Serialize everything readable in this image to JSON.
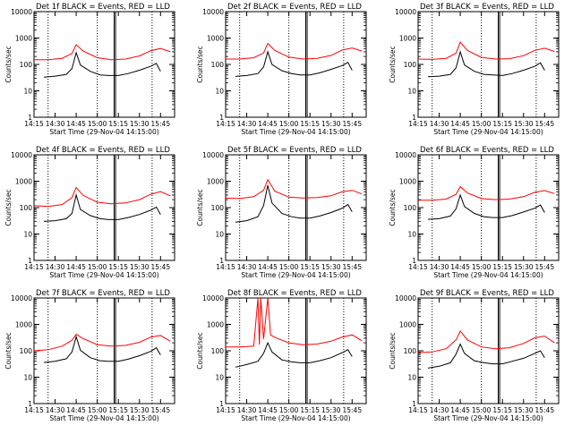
{
  "chart_data": {
    "type": "line",
    "y_scale": "log",
    "ylim": [
      1,
      10000
    ],
    "y_ticks": [
      1,
      10,
      100,
      1000,
      10000
    ],
    "y_tick_labels": [
      "1",
      "10",
      "100",
      "1000",
      "10000"
    ],
    "x_ticks": [
      "14:15",
      "14:30",
      "14:45",
      "15:00",
      "15:15",
      "15:30",
      "15:45"
    ],
    "x_tick_labels": [
      "14:15",
      "14:30",
      "14:45",
      "15:00",
      "15:15",
      "15:30",
      "15:45"
    ],
    "xlabel": "Start Time (29-Nov-04 14:15:00)",
    "ylabel": "Counts/sec",
    "series_colors": {
      "events": "#000000",
      "lld": "#ff0000"
    },
    "panels": [
      {
        "title": "Det 1f BLACK = Events, RED = LLD",
        "events": {
          "x": [
            "14:22",
            "14:30",
            "14:38",
            "14:42",
            "14:45",
            "14:48",
            "14:55",
            "15:02",
            "15:08",
            "15:15",
            "15:22",
            "15:30",
            "15:38",
            "15:42",
            "15:45"
          ],
          "y": [
            33,
            36,
            42,
            70,
            280,
            95,
            55,
            40,
            38,
            38,
            45,
            60,
            85,
            110,
            55
          ]
        },
        "lld": {
          "x": [
            "14:15",
            "14:25",
            "14:35",
            "14:42",
            "14:45",
            "14:50",
            "15:00",
            "15:10",
            "15:20",
            "15:30",
            "15:38",
            "15:45",
            "15:52"
          ],
          "y": [
            150,
            150,
            170,
            260,
            560,
            320,
            180,
            150,
            160,
            210,
            330,
            400,
            300
          ]
        }
      },
      {
        "title": "Det 2f BLACK = Events, RED = LLD",
        "events": {
          "x": [
            "14:22",
            "14:30",
            "14:38",
            "14:42",
            "14:45",
            "14:48",
            "14:55",
            "15:02",
            "15:08",
            "15:15",
            "15:22",
            "15:30",
            "15:38",
            "15:42",
            "15:45"
          ],
          "y": [
            35,
            38,
            45,
            80,
            300,
            100,
            58,
            45,
            40,
            40,
            48,
            65,
            90,
            120,
            60
          ]
        },
        "lld": {
          "x": [
            "14:15",
            "14:25",
            "14:35",
            "14:42",
            "14:45",
            "14:50",
            "15:00",
            "15:10",
            "15:20",
            "15:30",
            "15:38",
            "15:45",
            "15:52"
          ],
          "y": [
            160,
            160,
            180,
            270,
            620,
            340,
            190,
            160,
            170,
            220,
            350,
            420,
            320
          ]
        }
      },
      {
        "title": "Det 3f BLACK = Events, RED = LLD",
        "events": {
          "x": [
            "14:22",
            "14:30",
            "14:38",
            "14:42",
            "14:45",
            "14:48",
            "14:55",
            "15:02",
            "15:08",
            "15:15",
            "15:22",
            "15:30",
            "15:38",
            "15:42",
            "15:45"
          ],
          "y": [
            34,
            36,
            42,
            75,
            300,
            95,
            55,
            42,
            40,
            38,
            45,
            60,
            85,
            115,
            60
          ]
        },
        "lld": {
          "x": [
            "14:15",
            "14:25",
            "14:35",
            "14:42",
            "14:45",
            "14:50",
            "15:00",
            "15:10",
            "15:20",
            "15:30",
            "15:38",
            "15:45",
            "15:52"
          ],
          "y": [
            160,
            155,
            170,
            270,
            700,
            340,
            185,
            160,
            165,
            215,
            340,
            410,
            310
          ]
        }
      },
      {
        "title": "Det 4f BLACK = Events, RED = LLD",
        "events": {
          "x": [
            "14:22",
            "14:30",
            "14:38",
            "14:42",
            "14:45",
            "14:48",
            "14:55",
            "15:02",
            "15:08",
            "15:15",
            "15:22",
            "15:30",
            "15:38",
            "15:42",
            "15:45"
          ],
          "y": [
            30,
            32,
            38,
            60,
            300,
            85,
            50,
            38,
            35,
            35,
            42,
            55,
            80,
            105,
            55
          ]
        },
        "lld": {
          "x": [
            "14:15",
            "14:25",
            "14:35",
            "14:42",
            "14:45",
            "14:50",
            "15:00",
            "15:10",
            "15:20",
            "15:30",
            "15:38",
            "15:45",
            "15:52"
          ],
          "y": [
            120,
            110,
            130,
            240,
            580,
            290,
            160,
            140,
            150,
            200,
            320,
            400,
            280
          ]
        }
      },
      {
        "title": "Det 5f BLACK = Events, RED = LLD",
        "events": {
          "x": [
            "14:22",
            "14:30",
            "14:38",
            "14:42",
            "14:45",
            "14:48",
            "14:55",
            "15:02",
            "15:08",
            "15:15",
            "15:22",
            "15:30",
            "15:38",
            "15:42",
            "15:45"
          ],
          "y": [
            28,
            32,
            45,
            120,
            700,
            150,
            60,
            45,
            40,
            40,
            48,
            65,
            95,
            130,
            70
          ]
        },
        "lld": {
          "x": [
            "14:15",
            "14:25",
            "14:35",
            "14:42",
            "14:45",
            "14:50",
            "15:00",
            "15:10",
            "15:20",
            "15:30",
            "15:38",
            "15:45",
            "15:52"
          ],
          "y": [
            230,
            220,
            260,
            450,
            1150,
            420,
            250,
            230,
            240,
            280,
            400,
            450,
            330
          ]
        }
      },
      {
        "title": "Det 6f BLACK = Events, RED = LLD",
        "events": {
          "x": [
            "14:22",
            "14:30",
            "14:38",
            "14:42",
            "14:45",
            "14:48",
            "14:55",
            "15:02",
            "15:08",
            "15:15",
            "15:22",
            "15:30",
            "15:38",
            "15:42",
            "15:45"
          ],
          "y": [
            36,
            38,
            48,
            90,
            300,
            110,
            60,
            45,
            42,
            42,
            50,
            68,
            95,
            125,
            65
          ]
        },
        "lld": {
          "x": [
            "14:15",
            "14:25",
            "14:35",
            "14:42",
            "14:45",
            "14:50",
            "15:00",
            "15:10",
            "15:20",
            "15:30",
            "15:38",
            "15:45",
            "15:52"
          ],
          "y": [
            190,
            190,
            210,
            320,
            620,
            360,
            220,
            200,
            210,
            260,
            380,
            440,
            340
          ]
        }
      },
      {
        "title": "Det 7f BLACK = Events, RED = LLD",
        "events": {
          "x": [
            "14:22",
            "14:30",
            "14:38",
            "14:42",
            "14:45",
            "14:48",
            "14:55",
            "15:02",
            "15:08",
            "15:15",
            "15:22",
            "15:30",
            "15:38",
            "15:42",
            "15:45"
          ],
          "y": [
            36,
            40,
            50,
            90,
            340,
            105,
            55,
            42,
            40,
            40,
            48,
            65,
            95,
            130,
            70
          ]
        },
        "lld": {
          "x": [
            "14:15",
            "14:25",
            "14:35",
            "14:42",
            "14:45",
            "14:50",
            "15:00",
            "15:10",
            "15:20",
            "15:30",
            "15:38",
            "15:45",
            "15:52"
          ],
          "y": [
            100,
            110,
            150,
            250,
            420,
            290,
            170,
            150,
            160,
            210,
            330,
            380,
            230
          ]
        }
      },
      {
        "title": "Det 8f BLACK = Events, RED = LLD",
        "events": {
          "x": [
            "14:22",
            "14:30",
            "14:38",
            "14:42",
            "14:45",
            "14:48",
            "14:55",
            "15:02",
            "15:08",
            "15:15",
            "15:22",
            "15:30",
            "15:38",
            "15:42",
            "15:45"
          ],
          "y": [
            24,
            30,
            40,
            80,
            200,
            90,
            45,
            38,
            35,
            35,
            42,
            55,
            85,
            110,
            60
          ]
        },
        "lld": {
          "x": [
            "14:15",
            "14:25",
            "14:35",
            "14:38",
            "14:39",
            "14:40",
            "14:42",
            "14:45",
            "14:47",
            "14:50",
            "15:00",
            "15:10",
            "15:20",
            "15:30",
            "15:38",
            "15:45",
            "15:52"
          ],
          "y": [
            140,
            140,
            150,
            10000,
            170,
            10000,
            280,
            10000,
            400,
            320,
            200,
            170,
            180,
            230,
            330,
            400,
            240
          ]
        }
      },
      {
        "title": "Det 9f BLACK = Events, RED = LLD",
        "events": {
          "x": [
            "14:22",
            "14:30",
            "14:38",
            "14:42",
            "14:45",
            "14:48",
            "14:55",
            "15:02",
            "15:08",
            "15:15",
            "15:22",
            "15:30",
            "15:38",
            "15:42",
            "15:45"
          ],
          "y": [
            22,
            26,
            35,
            75,
            180,
            80,
            42,
            35,
            32,
            32,
            40,
            52,
            80,
            100,
            55
          ]
        },
        "lld": {
          "x": [
            "14:15",
            "14:25",
            "14:35",
            "14:42",
            "14:45",
            "14:50",
            "15:00",
            "15:10",
            "15:20",
            "15:30",
            "15:38",
            "15:45",
            "15:52"
          ],
          "y": [
            85,
            90,
            120,
            260,
            560,
            260,
            140,
            120,
            130,
            190,
            310,
            360,
            200
          ]
        }
      }
    ],
    "vertical_markers": {
      "dotted": [
        "14:25",
        "15:00",
        "15:39"
      ],
      "solid": [
        "15:12",
        "15:13"
      ]
    }
  }
}
